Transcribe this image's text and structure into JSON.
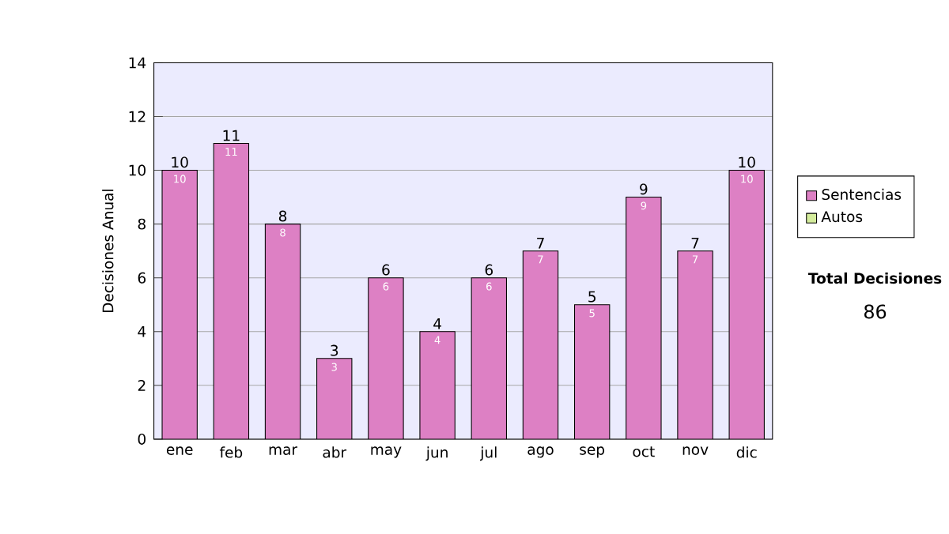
{
  "chart_data": {
    "type": "bar",
    "stacked": true,
    "ylabel": "Decisiones Anual",
    "categories": [
      "ene",
      "feb",
      "mar",
      "abr",
      "may",
      "jun",
      "jul",
      "ago",
      "sep",
      "oct",
      "nov",
      "dic"
    ],
    "series": [
      {
        "name": "Sentencias",
        "color": "#dd80c4",
        "values": [
          10,
          11,
          8,
          3,
          6,
          4,
          6,
          7,
          5,
          9,
          7,
          10
        ],
        "value_labels": [
          "10",
          "11",
          "8",
          "3",
          "6",
          "4",
          "6",
          "7",
          "5",
          "9",
          "7",
          "10"
        ]
      },
      {
        "name": "Autos",
        "color": "#d4ec9c",
        "values": [
          0,
          0,
          0,
          0,
          0,
          0,
          0,
          0,
          0,
          0,
          0,
          0
        ]
      }
    ],
    "totals": [
      "10",
      "11",
      "8",
      "3",
      "6",
      "4",
      "6",
      "7",
      "5",
      "9",
      "7",
      "10"
    ],
    "ylim": [
      0,
      14
    ],
    "yticks": [
      0,
      2,
      4,
      6,
      8,
      10,
      12,
      14
    ],
    "grid": "y",
    "legend": "right",
    "annotations": [
      "Total Decisiones",
      "86"
    ]
  }
}
